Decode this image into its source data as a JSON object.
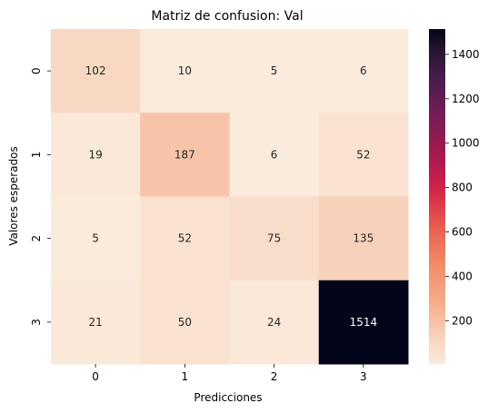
{
  "chart_data": {
    "type": "heatmap",
    "title": "Matriz de confusion: Val",
    "xlabel": "Predicciones",
    "ylabel": "Valores esperados",
    "x_categories": [
      "0",
      "1",
      "2",
      "3"
    ],
    "y_categories": [
      "0",
      "1",
      "2",
      "3"
    ],
    "values": [
      [
        102,
        10,
        5,
        6
      ],
      [
        19,
        187,
        6,
        52
      ],
      [
        5,
        52,
        75,
        135
      ],
      [
        21,
        50,
        24,
        1514
      ]
    ],
    "colorbar": {
      "min": 5,
      "max": 1514,
      "ticks": [
        200,
        400,
        600,
        800,
        1000,
        1200,
        1400
      ]
    },
    "colormap": "rocket_r"
  }
}
